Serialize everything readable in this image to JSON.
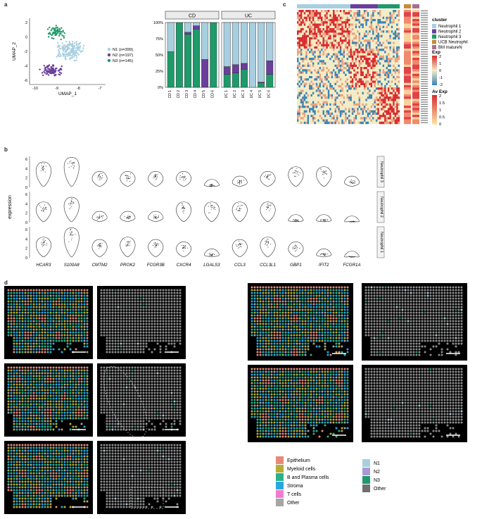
{
  "panel_labels": {
    "a": "a",
    "b": "b",
    "c": "c",
    "d": "d"
  },
  "colors": {
    "N1": "#a8cfe0",
    "N2": "#6a3f9c",
    "N3": "#1f9a6a",
    "ucb": "#c98a3a",
    "bm": "#a8708e",
    "epi": "#e58a7a",
    "myeloid": "#b5ad3a",
    "bplasma": "#2bb08a",
    "stroma": "#27a9df",
    "tcells": "#f07cd0",
    "other": "#a6a6a6",
    "other_dark": "#8a8a8a",
    "heat_hi": "#d92b2f",
    "heat_mid": "#f3ecc6",
    "heat_lo": "#3a84b8"
  },
  "chart_data": [
    {
      "type": "scatter",
      "id": "umap",
      "xlabel": "UMAP_1",
      "ylabel": "UMAP_2",
      "xlim": [
        -10.5,
        -6.8
      ],
      "ylim": [
        -6.5,
        2.5
      ],
      "xticks": [
        "-10",
        "-9",
        "-8",
        "-7"
      ],
      "yticks": [
        "2",
        "0",
        "-2",
        "-4",
        "-6"
      ],
      "series": [
        {
          "name": "N1 (n=399)",
          "n": 399
        },
        {
          "name": "N2 (n=197)",
          "n": 197
        },
        {
          "name": "N3 (n=145)",
          "n": 145
        }
      ]
    },
    {
      "type": "bar",
      "id": "composition",
      "ylim": [
        0,
        100
      ],
      "yticks": [
        "100%",
        "75%",
        "50%",
        "25%",
        "0%"
      ],
      "facets": [
        {
          "label": "CD",
          "categories": [
            "CD 1",
            "CD 2",
            "CD 3",
            "CD 4",
            "CD 5",
            "CD 6"
          ]
        },
        {
          "label": "UC",
          "categories": [
            "UC 1",
            "UC 2",
            "UC 3",
            "UC 4",
            "UC 5",
            "UC 6"
          ]
        }
      ],
      "series": [
        {
          "name": "N3",
          "values": [
            55,
            100,
            82,
            90,
            0,
            100,
            20,
            22,
            28,
            0,
            7,
            20
          ]
        },
        {
          "name": "N2",
          "values": [
            0,
            0,
            3,
            5,
            43,
            0,
            12,
            13,
            9,
            0,
            1,
            21
          ]
        },
        {
          "name": "N1",
          "values": [
            45,
            0,
            15,
            5,
            57,
            0,
            68,
            65,
            63,
            100,
            92,
            59
          ]
        }
      ]
    },
    {
      "type": "heatmap",
      "id": "heat",
      "legend_title": "cluster",
      "clusters": [
        "Neutrophil 1",
        "Neutrophil 2",
        "Neutrophil 3",
        "UCB Neutrophil",
        "BM matureN"
      ],
      "exp_title": "Exp",
      "exp_ticks": [
        "2",
        "1",
        "0",
        "-1",
        "-2"
      ],
      "avexp_title": "Av Exp",
      "avexp_ticks": [
        "2",
        "1.5",
        "1",
        "0.5",
        "0"
      ]
    },
    {
      "type": "violin",
      "id": "violins",
      "ylabel": "expression",
      "yticks": [
        "0",
        "2",
        "4",
        "6"
      ],
      "genes": [
        "HCAR3",
        "S100A8",
        "CMTM2",
        "PROK2",
        "FCGR3B",
        "CXCR4",
        "LGALS3",
        "CCL3",
        "CCL3L1",
        "GBP1",
        "IFIT2",
        "FCGR1A"
      ],
      "rows": [
        "Neutrophil 3",
        "Neutrophil 2",
        "Neutrophil 1"
      ],
      "medians": [
        [
          4,
          5,
          2,
          2,
          2,
          2,
          0.3,
          1,
          2,
          3,
          3,
          1
        ],
        [
          3,
          4,
          1,
          1,
          1,
          3,
          3,
          3,
          3,
          0.3,
          0.3,
          0
        ],
        [
          3,
          5,
          2.5,
          3,
          2.5,
          2,
          0.5,
          2.5,
          3,
          2,
          0.5,
          0
        ]
      ]
    }
  ],
  "spatial_legend_left": [
    "Epithelium",
    "Myeloid cells",
    "B and Plasma cells",
    "Stroma",
    "T cells",
    "Other"
  ],
  "spatial_legend_right": [
    "N1",
    "N2",
    "N3",
    "Other"
  ]
}
